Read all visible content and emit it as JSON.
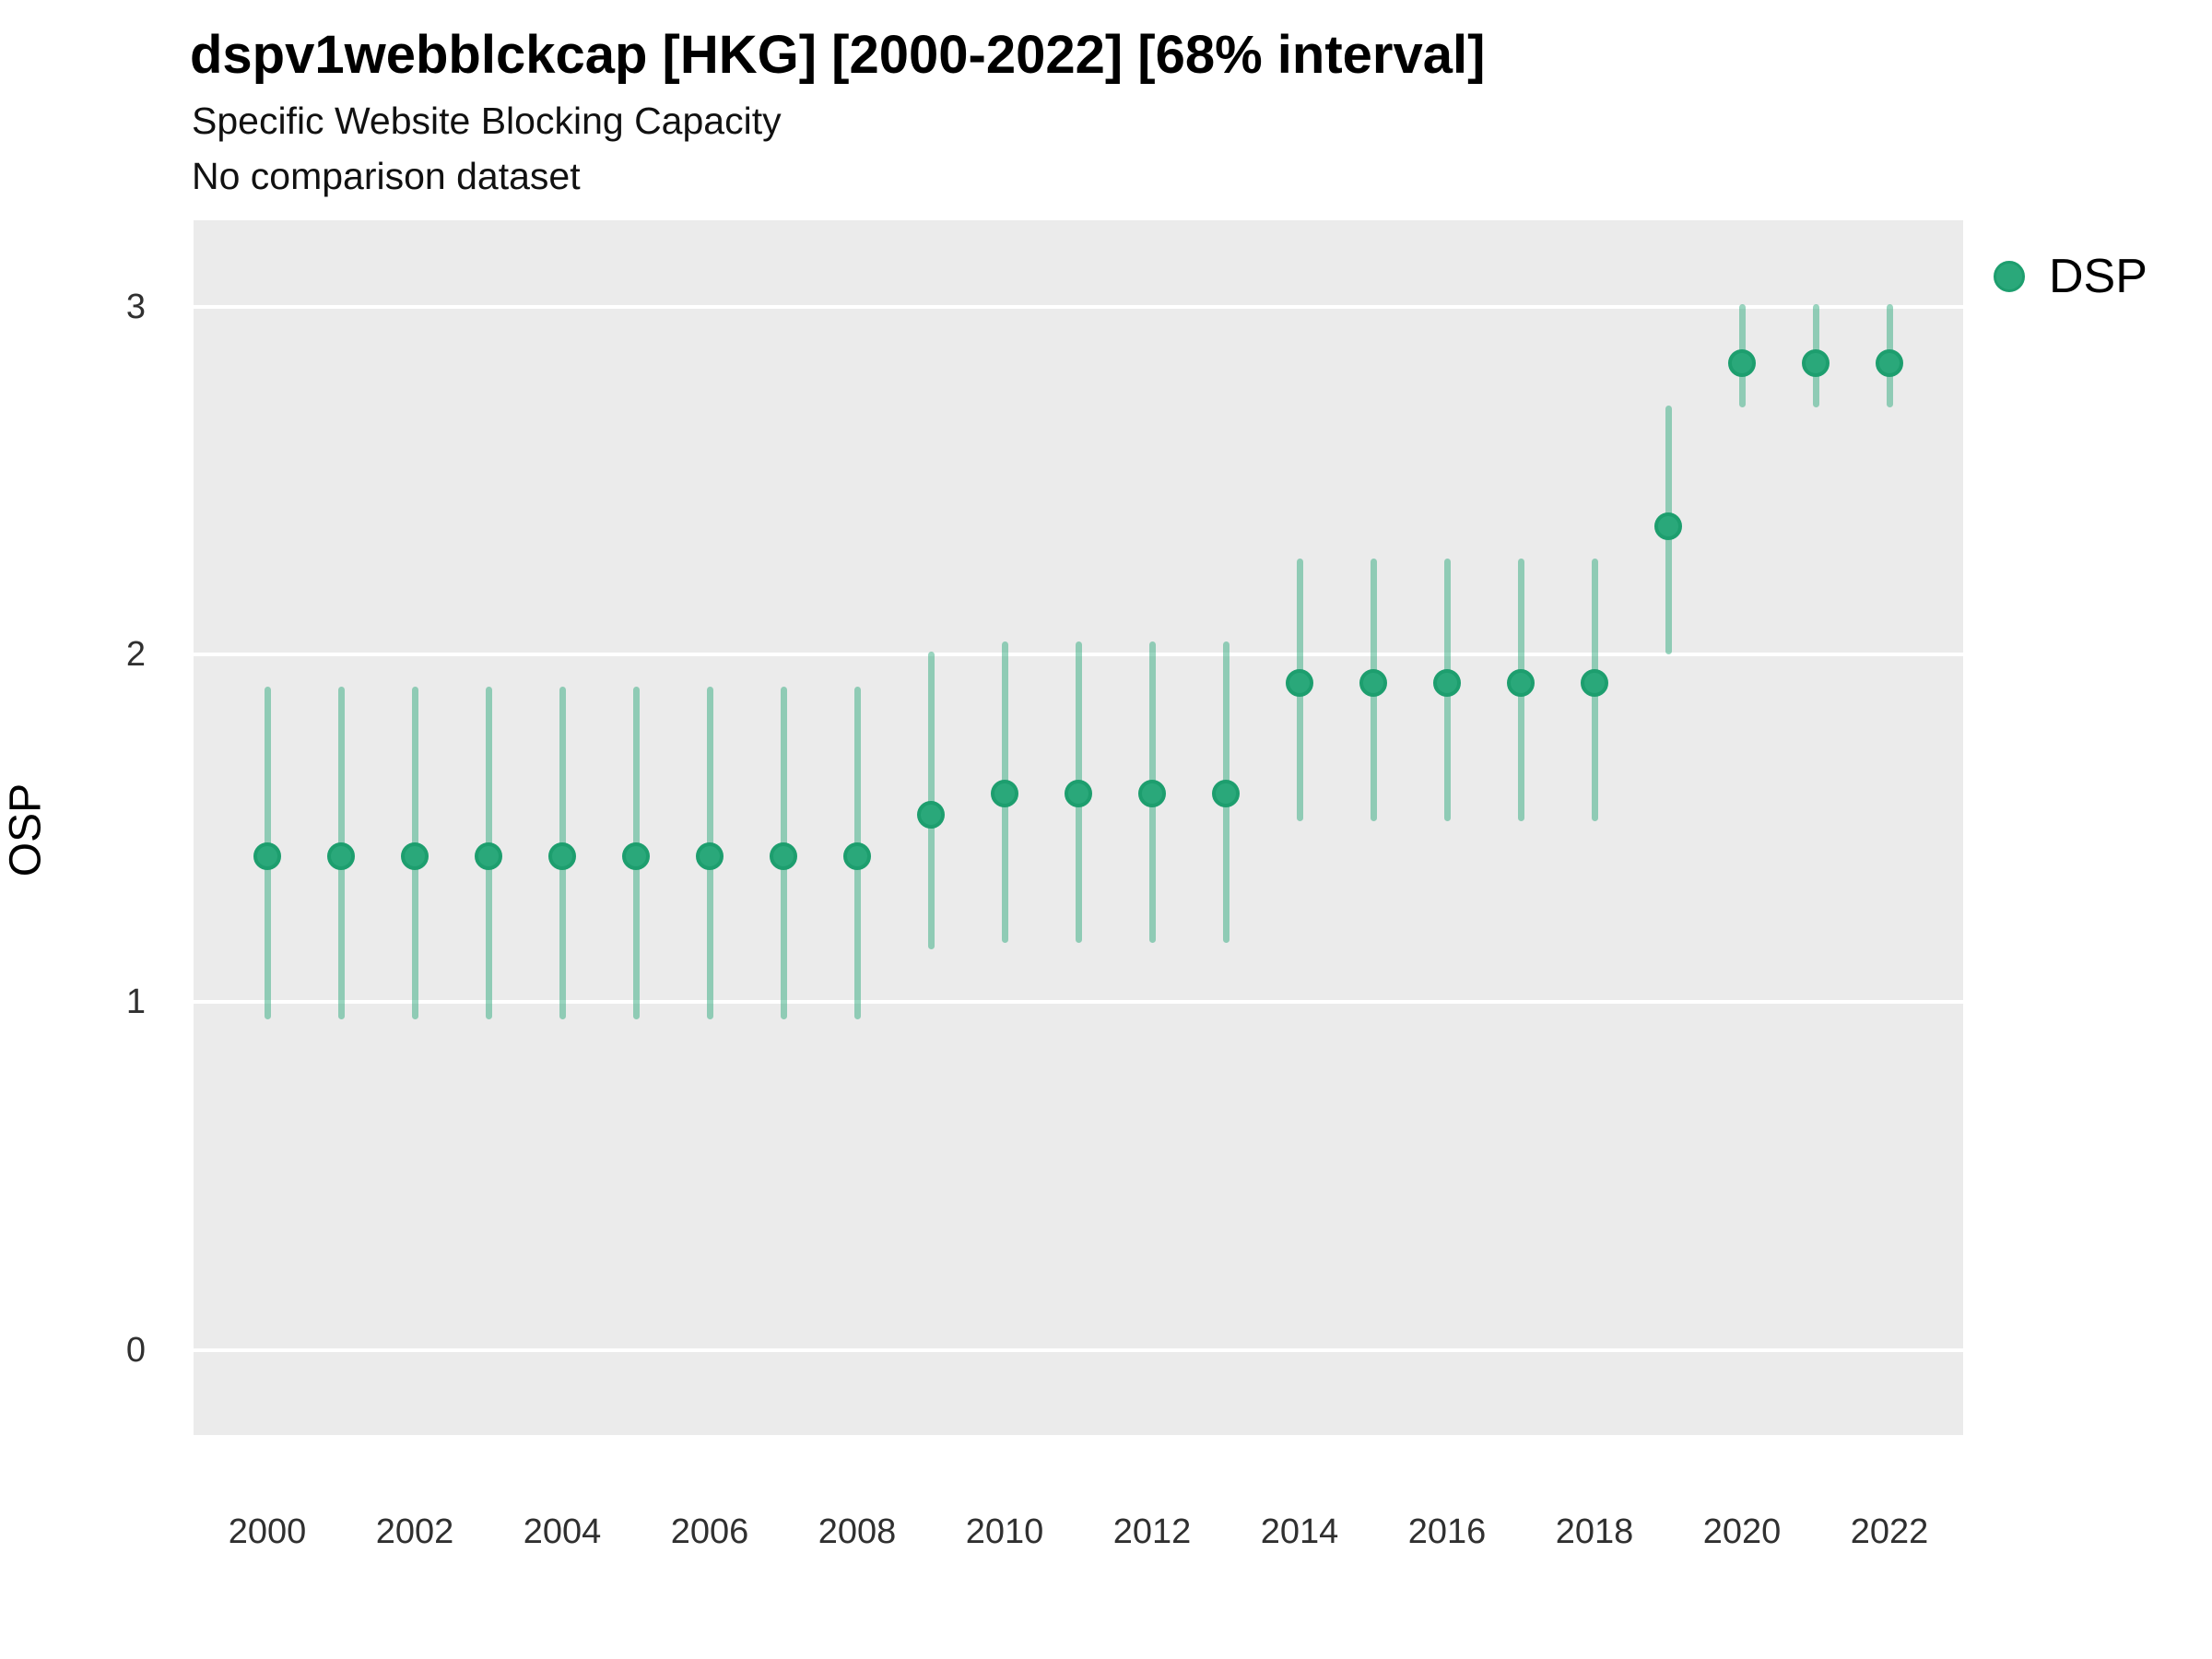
{
  "chart_data": {
    "type": "scatter",
    "title": "dspv1webblckcap [HKG] [2000-2022] [68% interval]",
    "subtitle": "Specific Website Blocking Capacity",
    "note": "No comparison dataset",
    "ylabel": "OSP",
    "xlabel": "",
    "interval": "68%",
    "legend": {
      "label": "DSP",
      "position": "right",
      "marker_color": "#2aa87a"
    },
    "x": [
      2000,
      2001,
      2002,
      2003,
      2004,
      2005,
      2006,
      2007,
      2008,
      2009,
      2010,
      2011,
      2012,
      2013,
      2014,
      2015,
      2016,
      2017,
      2018,
      2019,
      2020,
      2021,
      2022
    ],
    "series": [
      {
        "name": "DSP",
        "estimate": [
          1.42,
          1.42,
          1.42,
          1.42,
          1.42,
          1.42,
          1.42,
          1.42,
          1.42,
          1.54,
          1.6,
          1.6,
          1.6,
          1.6,
          1.92,
          1.92,
          1.92,
          1.92,
          1.92,
          2.37,
          2.84,
          2.84,
          2.84
        ],
        "lower": [
          0.96,
          0.96,
          0.96,
          0.96,
          0.96,
          0.96,
          0.96,
          0.96,
          0.96,
          1.16,
          1.18,
          1.18,
          1.18,
          1.18,
          1.53,
          1.53,
          1.53,
          1.53,
          1.53,
          2.01,
          2.72,
          2.72,
          2.72
        ],
        "upper": [
          1.9,
          1.9,
          1.9,
          1.9,
          1.9,
          1.9,
          1.9,
          1.9,
          1.9,
          2.0,
          2.03,
          2.03,
          2.03,
          2.03,
          2.27,
          2.27,
          2.27,
          2.27,
          2.27,
          2.71,
          3.0,
          3.0,
          3.0
        ]
      }
    ],
    "x_ticks": [
      2000,
      2002,
      2004,
      2006,
      2008,
      2010,
      2012,
      2014,
      2016,
      2018,
      2020,
      2022
    ],
    "y_ticks": [
      0,
      1,
      2,
      3
    ],
    "xlim": [
      1999,
      2023
    ],
    "ylim": [
      -0.245,
      3.25
    ],
    "grid": "horizontal-major-only",
    "colors": {
      "point": "#2aa87a",
      "point_stroke": "#1d9e6e",
      "interval_bar": "rgba(42,168,122,0.48)",
      "panel_bg": "#ebebeb",
      "gridline": "#ffffff"
    }
  }
}
